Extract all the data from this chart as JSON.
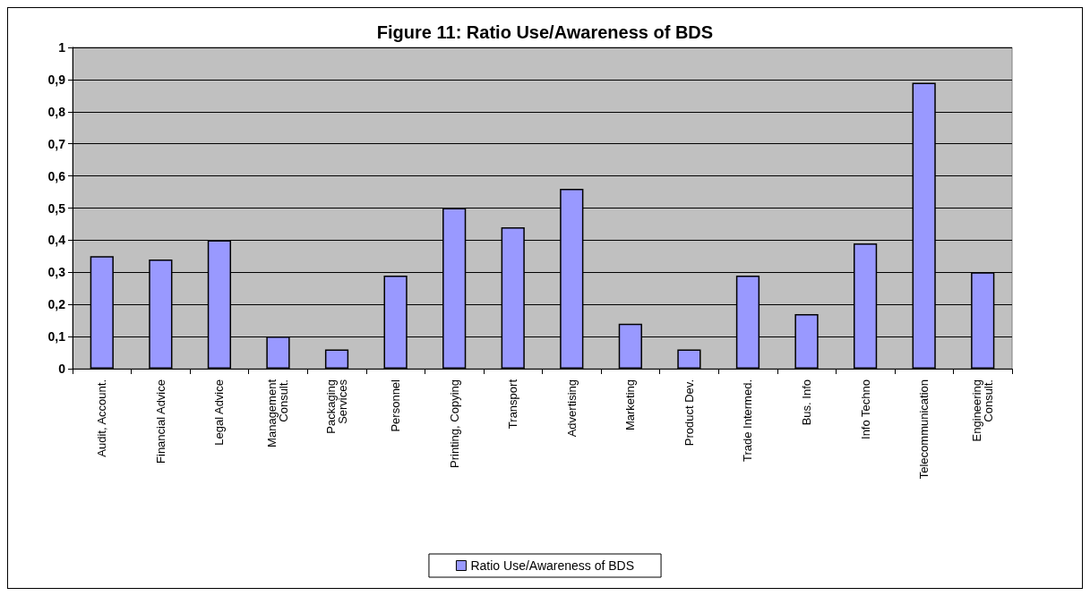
{
  "chart_data": {
    "type": "bar",
    "title": "Figure 11: Ratio Use/Awareness of BDS",
    "categories": [
      "Audit, Account.",
      "Financial Advice",
      "Legal Advice",
      "Management\nConsult.",
      "Packaging\nServices",
      "Personnel",
      "Printing, Copying",
      "Transport",
      "Advertising",
      "Marketing",
      "Product Dev.",
      "Trade Intermed.",
      "Bus. Info",
      "Info Techno",
      "Telecommunication",
      "Engineering\nConsult."
    ],
    "series": [
      {
        "name": "Ratio Use/Awareness of BDS",
        "color": "#9999ff",
        "values": [
          0.35,
          0.34,
          0.4,
          0.1,
          0.06,
          0.29,
          0.5,
          0.44,
          0.56,
          0.14,
          0.06,
          0.29,
          0.17,
          0.39,
          0.89,
          0.3
        ]
      }
    ],
    "ylim": [
      0,
      1
    ],
    "yticks": [
      {
        "value": 0,
        "label": "0"
      },
      {
        "value": 0.1,
        "label": "0,1"
      },
      {
        "value": 0.2,
        "label": "0,2"
      },
      {
        "value": 0.3,
        "label": "0,3"
      },
      {
        "value": 0.4,
        "label": "0,4"
      },
      {
        "value": 0.5,
        "label": "0,5"
      },
      {
        "value": 0.6,
        "label": "0,6"
      },
      {
        "value": 0.7,
        "label": "0,7"
      },
      {
        "value": 0.8,
        "label": "0,8"
      },
      {
        "value": 0.9,
        "label": "0,9"
      },
      {
        "value": 1,
        "label": "1"
      }
    ],
    "grid": true,
    "legend": "bottom"
  }
}
